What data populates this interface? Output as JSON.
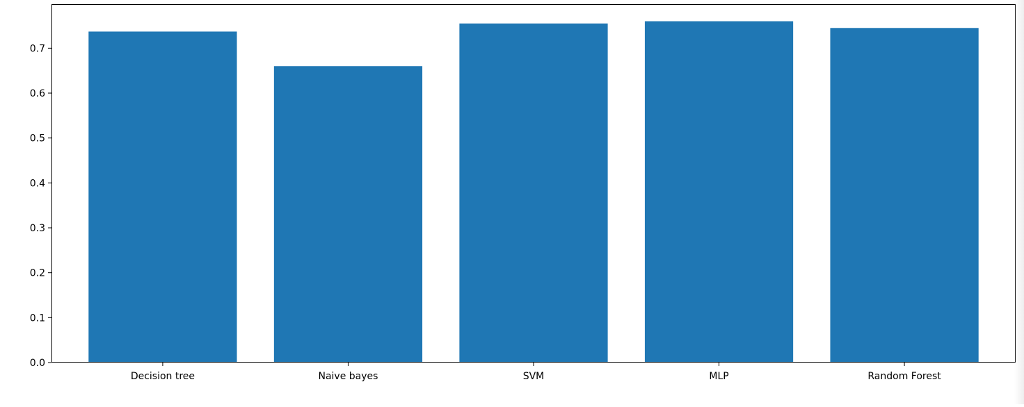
{
  "colors": {
    "bar": "#1f77b4",
    "axis": "#000000",
    "background": "#ffffff"
  },
  "chart_data": {
    "type": "bar",
    "categories": [
      "Decision tree",
      "Naive bayes",
      "SVM",
      "MLP",
      "Random Forest"
    ],
    "values": [
      0.737,
      0.66,
      0.755,
      0.76,
      0.745
    ],
    "title": "",
    "xlabel": "",
    "ylabel": "",
    "ylim": [
      0,
      0.798
    ],
    "yticks": [
      0.0,
      0.1,
      0.2,
      0.3,
      0.4,
      0.5,
      0.6,
      0.7
    ],
    "ytick_labels": [
      "0.0",
      "0.1",
      "0.2",
      "0.3",
      "0.4",
      "0.5",
      "0.6",
      "0.7"
    ],
    "grid": false,
    "legend": false
  }
}
